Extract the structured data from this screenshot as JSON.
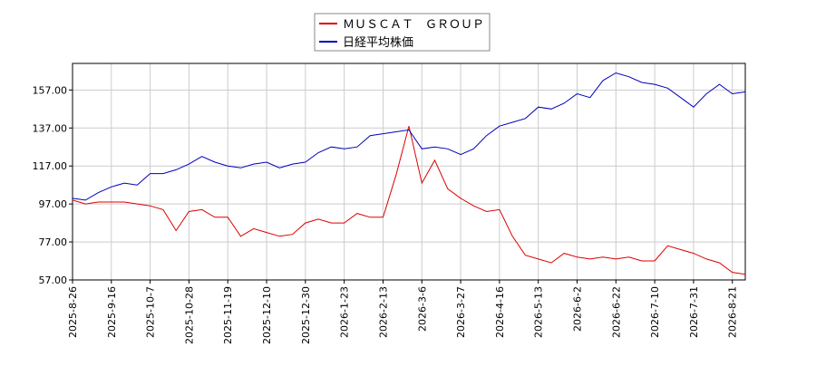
{
  "chart_data": {
    "type": "line",
    "categories": [
      "2025-8-26",
      null,
      null,
      "2025-9-16",
      null,
      null,
      "2025-10-7",
      null,
      null,
      "2025-10-28",
      null,
      null,
      "2025-11-19",
      null,
      null,
      "2025-12-10",
      null,
      null,
      "2025-12-30",
      null,
      null,
      "2026-1-23",
      null,
      null,
      "2026-2-13",
      null,
      null,
      "2026-3-6",
      null,
      null,
      "2026-3-27",
      null,
      null,
      "2026-4-16",
      null,
      null,
      "2026-5-13",
      null,
      null,
      "2026-6-2",
      null,
      null,
      "2026-6-22",
      null,
      null,
      "2026-7-10",
      null,
      null,
      "2026-7-31",
      null,
      null,
      "2026-8-21",
      null
    ],
    "series": [
      {
        "name": "ＭＵＳＣＡＴ　ＧＲＯＵＰ",
        "color": "#dd0000",
        "values": [
          99,
          97,
          98,
          98,
          98,
          97,
          96,
          94,
          83,
          93,
          94,
          90,
          90,
          80,
          84,
          82,
          80,
          81,
          87,
          89,
          87,
          87,
          92,
          90,
          90,
          112,
          138,
          108,
          120,
          105,
          100,
          96,
          93,
          94,
          80,
          70,
          68,
          66,
          71,
          69,
          68,
          69,
          68,
          69,
          67,
          67,
          75,
          73,
          71,
          68,
          66,
          61,
          60
        ]
      },
      {
        "name": "日経平均株価",
        "color": "#0000bb",
        "values": [
          100,
          99,
          103,
          106,
          108,
          107,
          113,
          113,
          115,
          118,
          122,
          119,
          117,
          116,
          118,
          119,
          116,
          118,
          119,
          124,
          127,
          126,
          127,
          133,
          134,
          135,
          136,
          126,
          127,
          126,
          123,
          126,
          133,
          138,
          140,
          142,
          148,
          147,
          150,
          155,
          153,
          162,
          166,
          164,
          161,
          160,
          158,
          153,
          148,
          155,
          160,
          155,
          156
        ]
      }
    ],
    "ylim": [
      57,
      171
    ],
    "yticks": [
      {
        "value": 57,
        "label": "57.00"
      },
      {
        "value": 77,
        "label": "77.00"
      },
      {
        "value": 97,
        "label": "97.00"
      },
      {
        "value": 117,
        "label": "117.00"
      },
      {
        "value": 137,
        "label": "137.00"
      },
      {
        "value": 157,
        "label": "157.00"
      }
    ],
    "grid": true
  }
}
